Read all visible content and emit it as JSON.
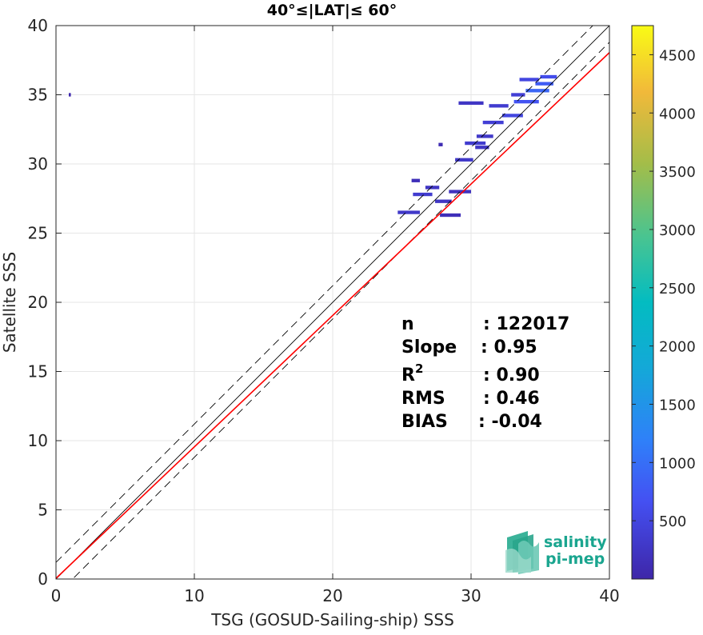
{
  "chart_data": {
    "type": "scatter",
    "subtype": "density-heatmap",
    "title": "40°≤|LAT|≤ 60°",
    "xlabel": "TSG (GOSUD-Sailing-ship) SSS",
    "ylabel": "Satellite SSS",
    "xlim": [
      0,
      40
    ],
    "ylim": [
      0,
      40
    ],
    "xticks": [
      "0",
      "10",
      "20",
      "30",
      "40"
    ],
    "yticks": [
      "0",
      "5",
      "10",
      "15",
      "20",
      "25",
      "30",
      "35",
      "40"
    ],
    "grid": true,
    "colorbar": {
      "ticks": [
        "500",
        "1000",
        "1500",
        "2000",
        "2500",
        "3000",
        "3500",
        "4000",
        "4500"
      ],
      "range": [
        0,
        4750
      ],
      "colormap": "parula"
    },
    "lines": [
      {
        "kind": "identity",
        "x": [
          0,
          40
        ],
        "y": [
          0,
          40
        ],
        "color": "#000000",
        "style": "solid"
      },
      {
        "kind": "upper-bound",
        "x": [
          0,
          40
        ],
        "y": [
          1.2,
          41.2
        ],
        "color": "#000000",
        "style": "dashed"
      },
      {
        "kind": "lower-bound",
        "x": [
          0,
          40
        ],
        "y": [
          -1.2,
          38.8
        ],
        "color": "#000000",
        "style": "dashed"
      },
      {
        "kind": "regression",
        "x": [
          0,
          40
        ],
        "y": [
          0.05,
          38.05
        ],
        "color": "#ff0000",
        "style": "solid"
      }
    ],
    "density_cells": [
      {
        "x": 25.5,
        "y": 26.5,
        "w": 1.6,
        "count": 300
      },
      {
        "x": 26.5,
        "y": 27.8,
        "w": 1.4,
        "count": 350
      },
      {
        "x": 27.2,
        "y": 28.3,
        "w": 1.0,
        "count": 250
      },
      {
        "x": 28.0,
        "y": 27.3,
        "w": 1.2,
        "count": 250
      },
      {
        "x": 29.2,
        "y": 28.0,
        "w": 1.6,
        "count": 200
      },
      {
        "x": 26.0,
        "y": 28.8,
        "w": 0.6,
        "count": 150
      },
      {
        "x": 28.5,
        "y": 26.3,
        "w": 1.5,
        "count": 150
      },
      {
        "x": 29.5,
        "y": 30.3,
        "w": 1.3,
        "count": 300
      },
      {
        "x": 30.3,
        "y": 31.5,
        "w": 1.5,
        "count": 350
      },
      {
        "x": 31.0,
        "y": 32.0,
        "w": 1.2,
        "count": 300
      },
      {
        "x": 30.8,
        "y": 31.2,
        "w": 1.0,
        "count": 250
      },
      {
        "x": 31.6,
        "y": 33.0,
        "w": 1.5,
        "count": 400
      },
      {
        "x": 32.0,
        "y": 34.2,
        "w": 1.4,
        "count": 350
      },
      {
        "x": 30.0,
        "y": 34.4,
        "w": 1.8,
        "count": 250
      },
      {
        "x": 33.0,
        "y": 33.5,
        "w": 1.5,
        "count": 500
      },
      {
        "x": 34.0,
        "y": 34.5,
        "w": 1.8,
        "count": 700
      },
      {
        "x": 34.8,
        "y": 35.3,
        "w": 1.7,
        "count": 900
      },
      {
        "x": 35.3,
        "y": 35.8,
        "w": 1.3,
        "count": 800
      },
      {
        "x": 34.2,
        "y": 36.1,
        "w": 1.4,
        "count": 500
      },
      {
        "x": 33.4,
        "y": 35.0,
        "w": 1.0,
        "count": 400
      },
      {
        "x": 35.6,
        "y": 36.3,
        "w": 1.2,
        "count": 600
      },
      {
        "x": 27.8,
        "y": 31.4,
        "w": 0.3,
        "count": 100
      },
      {
        "x": 1.0,
        "y": 35.0,
        "w": 0.15,
        "count": 50
      }
    ],
    "stats": [
      {
        "label": "n",
        "value": ": 122017"
      },
      {
        "label": "Slope",
        "value": ": 0.95"
      },
      {
        "label": "R",
        "sup": "2",
        "value": ": 0.90"
      },
      {
        "label": "RMS",
        "value": ": 0.46"
      },
      {
        "label": "BIAS",
        "value": ": -0.04"
      }
    ]
  },
  "logo": {
    "line1": "salinity",
    "line2": "pi-mep",
    "color": "#1aa58f"
  }
}
